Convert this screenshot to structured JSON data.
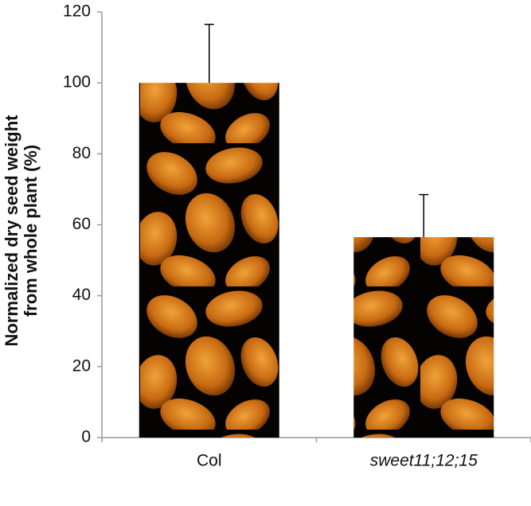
{
  "chart_data": {
    "type": "bar",
    "ylabel": [
      "Normalized dry seed weight",
      "from whole plant (%)"
    ],
    "categories": [
      "Col",
      "sweet11;12;15"
    ],
    "values": [
      100,
      56.5
    ],
    "errors": [
      16.5,
      12
    ],
    "ylim": [
      0,
      120
    ],
    "yticks": [
      0,
      20,
      40,
      60,
      80,
      100,
      120
    ]
  }
}
